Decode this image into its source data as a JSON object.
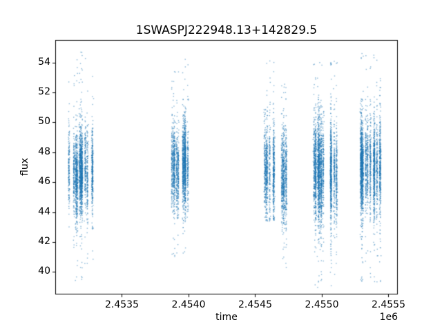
{
  "chart_data": {
    "type": "scatter",
    "title": "1SWASPJ222948.13+142829.5",
    "xlabel": "time",
    "ylabel": "flux",
    "x_offset_text": "1e6",
    "xlim": [
      2453000,
      2455570
    ],
    "ylim": [
      38.5,
      55.5
    ],
    "grid": false,
    "legend": "none",
    "marker_color": "#1f77b4",
    "marker_alpha": 0.55,
    "marker_size_px": 1.4,
    "background": "#ffffff",
    "axis_color": "#000000",
    "xticks": [
      {
        "value": 2453500,
        "label": "2.4535"
      },
      {
        "value": 2454000,
        "label": "2.4540"
      },
      {
        "value": 2454500,
        "label": "2.4545"
      },
      {
        "value": 2455000,
        "label": "2.4550"
      },
      {
        "value": 2455500,
        "label": "2.4555"
      }
    ],
    "yticks": [
      {
        "value": 40,
        "label": "40"
      },
      {
        "value": 42,
        "label": "42"
      },
      {
        "value": 44,
        "label": "44"
      },
      {
        "value": 46,
        "label": "46"
      },
      {
        "value": 48,
        "label": "48"
      },
      {
        "value": 50,
        "label": "50"
      },
      {
        "value": 52,
        "label": "52"
      },
      {
        "value": 54,
        "label": "54"
      }
    ],
    "tail_fraction": 0.06,
    "tail_scale": 2.4,
    "uniform_outlier_fraction": 0.018,
    "clusters": [
      {
        "x_center": 2453190,
        "x_spread": 90,
        "n": 2600,
        "y_mean": 46.7,
        "y_std": 1.35,
        "y_min": 39.4,
        "y_max": 54.7
      },
      {
        "x_center": 2453935,
        "x_spread": 72,
        "n": 2100,
        "y_mean": 47.1,
        "y_std": 1.35,
        "y_min": 41.0,
        "y_max": 54.5
      },
      {
        "x_center": 2454615,
        "x_spread": 45,
        "n": 1100,
        "y_mean": 46.9,
        "y_std": 1.45,
        "y_min": 43.4,
        "y_max": 54.2
      },
      {
        "x_center": 2454712,
        "x_spread": 30,
        "n": 800,
        "y_mean": 46.4,
        "y_std": 1.5,
        "y_min": 40.3,
        "y_max": 52.6
      },
      {
        "x_center": 2455030,
        "x_spread": 88,
        "n": 3000,
        "y_mean": 46.7,
        "y_std": 1.6,
        "y_min": 38.9,
        "y_max": 54.1
      },
      {
        "x_center": 2455370,
        "x_spread": 92,
        "n": 2800,
        "y_mean": 46.9,
        "y_std": 1.5,
        "y_min": 39.3,
        "y_max": 54.6
      }
    ]
  }
}
